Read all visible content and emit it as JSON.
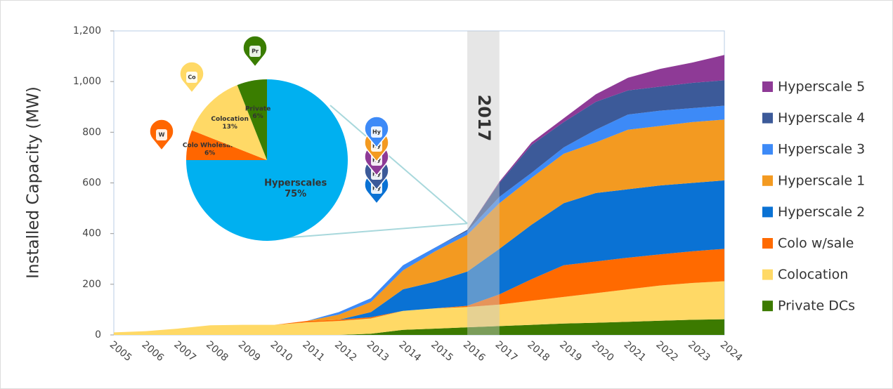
{
  "chart_data": {
    "type": "area",
    "stacked": true,
    "ylabel": "Installed Capacity (MW)",
    "categories": [
      "2005",
      "2006",
      "2007",
      "2008",
      "2009",
      "2010",
      "2011",
      "2012",
      "2013",
      "2014",
      "2015",
      "2016",
      "2017",
      "2018",
      "2019",
      "2020",
      "2021",
      "2022",
      "2023",
      "2024"
    ],
    "series": [
      {
        "name": "Private DCs",
        "color": "#3c7a00",
        "values": [
          0,
          0,
          0,
          0,
          0,
          0,
          0,
          0,
          5,
          20,
          25,
          30,
          35,
          40,
          45,
          48,
          52,
          56,
          60,
          62
        ]
      },
      {
        "name": "Colocation",
        "color": "#ffd966",
        "values": [
          10,
          15,
          25,
          38,
          40,
          40,
          50,
          55,
          60,
          75,
          80,
          80,
          85,
          95,
          105,
          117,
          128,
          139,
          145,
          150
        ]
      },
      {
        "name": "Colo w/sale",
        "color": "#ff6a00",
        "values": [
          0,
          0,
          0,
          0,
          0,
          0,
          5,
          5,
          5,
          0,
          0,
          5,
          40,
          85,
          125,
          125,
          125,
          123,
          125,
          128
        ]
      },
      {
        "name": "Hyperscale 2",
        "color": "#0a72d4",
        "values": [
          0,
          0,
          0,
          0,
          0,
          0,
          0,
          0,
          20,
          85,
          105,
          135,
          180,
          215,
          245,
          270,
          270,
          272,
          270,
          270
        ]
      },
      {
        "name": "Hyperscale 1",
        "color": "#f39a21",
        "values": [
          0,
          0,
          0,
          0,
          0,
          0,
          0,
          20,
          40,
          75,
          120,
          145,
          180,
          185,
          195,
          200,
          235,
          235,
          240,
          240
        ]
      },
      {
        "name": "Hyperscale 3",
        "color": "#3d8af7",
        "values": [
          0,
          0,
          0,
          0,
          0,
          0,
          0,
          10,
          15,
          20,
          15,
          15,
          25,
          20,
          25,
          50,
          60,
          60,
          55,
          55
        ]
      },
      {
        "name": "Hyperscale 4",
        "color": "#3c5a99",
        "values": [
          0,
          0,
          0,
          0,
          0,
          0,
          0,
          0,
          0,
          0,
          0,
          5,
          55,
          110,
          100,
          110,
          95,
          95,
          100,
          100
        ]
      },
      {
        "name": "Hyperscale 5",
        "color": "#8e3a96",
        "values": [
          0,
          0,
          0,
          0,
          0,
          0,
          0,
          0,
          0,
          0,
          0,
          0,
          5,
          10,
          15,
          30,
          50,
          70,
          80,
          100
        ]
      }
    ],
    "ylim": [
      0,
      1200
    ],
    "yticks": [
      0,
      200,
      400,
      600,
      800,
      {
        "value": 1000,
        "label": "1,000"
      },
      {
        "value": 1200,
        "label": "1,200"
      }
    ],
    "highlight": "2017",
    "legend": "right",
    "inset": {
      "type": "pie",
      "labels": [
        "Hyperscales",
        "Colo Wholesale",
        "Colocation",
        "Private"
      ],
      "values": [
        75,
        6,
        13,
        6
      ],
      "value_labels": [
        "75%",
        "6%",
        "13%",
        "6%"
      ],
      "colors": [
        "#00b0f0",
        "#ff6600",
        "#ffd966",
        "#3a7d00"
      ],
      "pins": [
        "W",
        "Co",
        "Pr"
      ],
      "hyperscale_pins": [
        "Hy",
        "Hy",
        "Hy",
        "Hy",
        "Hy"
      ]
    }
  }
}
